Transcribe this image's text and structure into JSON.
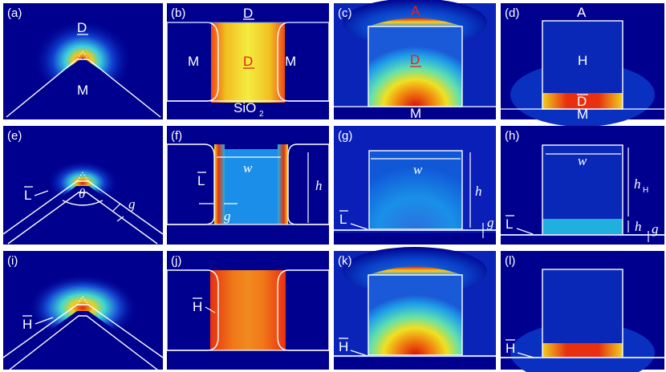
{
  "panel_labels": {
    "a": "(a)",
    "b": "(b)",
    "c": "(c)",
    "d": "(d)",
    "e": "(e)",
    "f": "(f)",
    "g": "(g)",
    "h": "(h)",
    "i": "(i)",
    "j": "(j)",
    "k": "(k)",
    "l": "(l)"
  },
  "regions": {
    "dielectric": "D",
    "metal": "M",
    "air": "A",
    "high_index": "H",
    "substrate": "SiO",
    "substrate_sub": "2",
    "low_index_layer": "L",
    "high_index_layer": "H"
  },
  "variables": {
    "width": "w",
    "height": "h",
    "gap": "g",
    "angle": "θ",
    "h_sub": "H"
  },
  "colors": {
    "background_field": "#00008f",
    "field_low": "#0a1fb8",
    "field_mid": "#17a6e8",
    "field_high": "#f2e81e",
    "field_peak": "#e83010",
    "outline": "#ffffff"
  }
}
